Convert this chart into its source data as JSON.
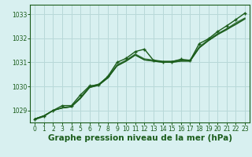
{
  "bg_color": "#d8f0f0",
  "plot_bg_color": "#d8f0f0",
  "grid_color": "#b8d8d8",
  "line_color": "#1a5c1a",
  "xlabel": "Graphe pression niveau de la mer (hPa)",
  "xlabel_fontsize": 7.5,
  "ylabel_ticks": [
    1029,
    1030,
    1031,
    1032,
    1033
  ],
  "xlim": [
    -0.5,
    23.5
  ],
  "ylim": [
    1028.5,
    1033.4
  ],
  "xticks": [
    0,
    1,
    2,
    3,
    4,
    5,
    6,
    7,
    8,
    9,
    10,
    11,
    12,
    13,
    14,
    15,
    16,
    17,
    18,
    19,
    20,
    21,
    22,
    23
  ],
  "series_smooth": [
    [
      1028.65,
      1028.78,
      1029.0,
      1029.1,
      1029.15,
      1029.5,
      1029.95,
      1030.05,
      1030.35,
      1030.85,
      1031.05,
      1031.3,
      1031.1,
      1031.05,
      1031.0,
      1031.0,
      1031.05,
      1031.05,
      1031.6,
      1031.9,
      1032.15,
      1032.4,
      1032.65,
      1032.85
    ],
    [
      1028.65,
      1028.78,
      1029.0,
      1029.1,
      1029.15,
      1029.5,
      1029.95,
      1030.05,
      1030.35,
      1030.85,
      1031.05,
      1031.3,
      1031.1,
      1031.05,
      1031.0,
      1031.0,
      1031.05,
      1031.05,
      1031.6,
      1031.9,
      1032.15,
      1032.35,
      1032.6,
      1032.82
    ],
    [
      1028.65,
      1028.78,
      1029.0,
      1029.1,
      1029.15,
      1029.52,
      1029.97,
      1030.07,
      1030.37,
      1030.87,
      1031.07,
      1031.32,
      1031.12,
      1031.07,
      1031.02,
      1031.02,
      1031.07,
      1031.07,
      1031.62,
      1031.92,
      1032.17,
      1032.37,
      1032.57,
      1032.8
    ],
    [
      1028.65,
      1028.78,
      1029.0,
      1029.12,
      1029.17,
      1029.55,
      1030.0,
      1030.1,
      1030.4,
      1030.9,
      1031.1,
      1031.35,
      1031.15,
      1031.1,
      1031.05,
      1031.05,
      1031.1,
      1031.1,
      1031.65,
      1031.95,
      1032.2,
      1032.4,
      1032.6,
      1032.82
    ]
  ],
  "marker_series": [
    1028.62,
    1028.75,
    1029.0,
    1029.2,
    1029.2,
    1029.65,
    1030.02,
    1030.07,
    1030.42,
    1031.0,
    1031.17,
    1031.45,
    1031.55,
    1031.08,
    1031.03,
    1031.03,
    1031.13,
    1031.08,
    1031.78,
    1031.98,
    1032.28,
    1032.52,
    1032.78,
    1033.05
  ]
}
